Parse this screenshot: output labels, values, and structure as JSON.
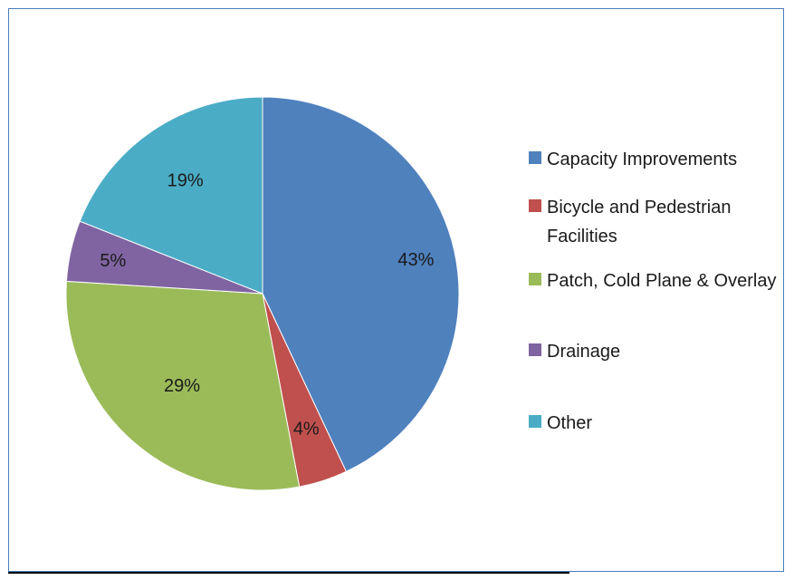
{
  "chart_data": {
    "type": "pie",
    "slices": [
      {
        "label": "Capacity Improvements",
        "value": 43,
        "display": "43%",
        "color": "#4f81bd"
      },
      {
        "label": "Bicycle and Pedestrian Facilities",
        "value": 4,
        "display": "4%",
        "color": "#c0504d"
      },
      {
        "label": "Patch, Cold Plane & Overlay",
        "value": 29,
        "display": "29%",
        "color": "#9bbb59"
      },
      {
        "label": "Drainage",
        "value": 5,
        "display": "5%",
        "color": "#8064a2"
      },
      {
        "label": "Other",
        "value": 19,
        "display": "19%",
        "color": "#4bacc6"
      }
    ],
    "legend_position": "right",
    "start_angle": "top, clockwise"
  }
}
